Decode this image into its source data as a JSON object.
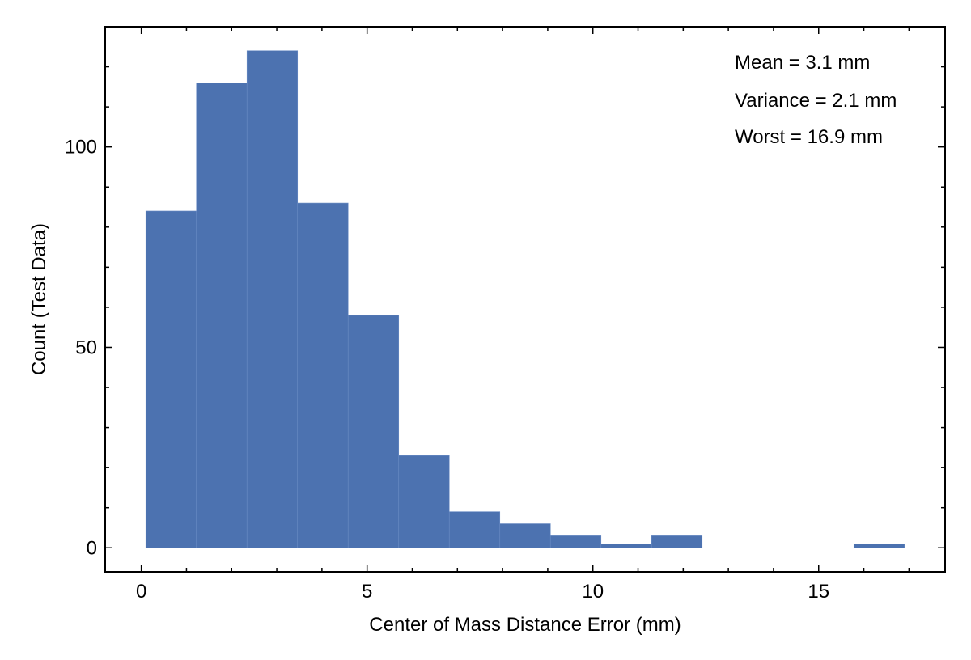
{
  "chart_data": {
    "type": "bar",
    "title": "",
    "xlabel": "Center of Mass Distance Error (mm)",
    "ylabel": "Count (Test Data)",
    "xlim": [
      -0.8,
      17.8
    ],
    "ylim": [
      -6,
      130
    ],
    "xticks": [
      0,
      5,
      10,
      15
    ],
    "xtick_labels": [
      "0",
      "5",
      "10",
      "15"
    ],
    "xminor": [
      1,
      2,
      3,
      4,
      6,
      7,
      8,
      9,
      11,
      12,
      13,
      14,
      16,
      17
    ],
    "yticks": [
      0,
      50,
      100
    ],
    "ytick_labels": [
      "0",
      "50",
      "100"
    ],
    "yminor": [
      10,
      20,
      30,
      40,
      60,
      70,
      80,
      90,
      110,
      120
    ],
    "bin_edges": [
      0.1,
      1.22,
      2.34,
      3.46,
      4.58,
      5.7,
      6.82,
      7.94,
      9.06,
      10.18,
      11.3,
      12.42,
      13.54,
      14.66,
      15.78,
      16.9
    ],
    "values": [
      84,
      116,
      124,
      86,
      58,
      23,
      9,
      6,
      3,
      1,
      3,
      0,
      0,
      0,
      1
    ],
    "bar_color": "#4c72b0",
    "grid": false,
    "annotations": [
      "Mean = 3.1 mm",
      "Variance = 2.1 mm",
      "Worst = 16.9 mm"
    ]
  }
}
